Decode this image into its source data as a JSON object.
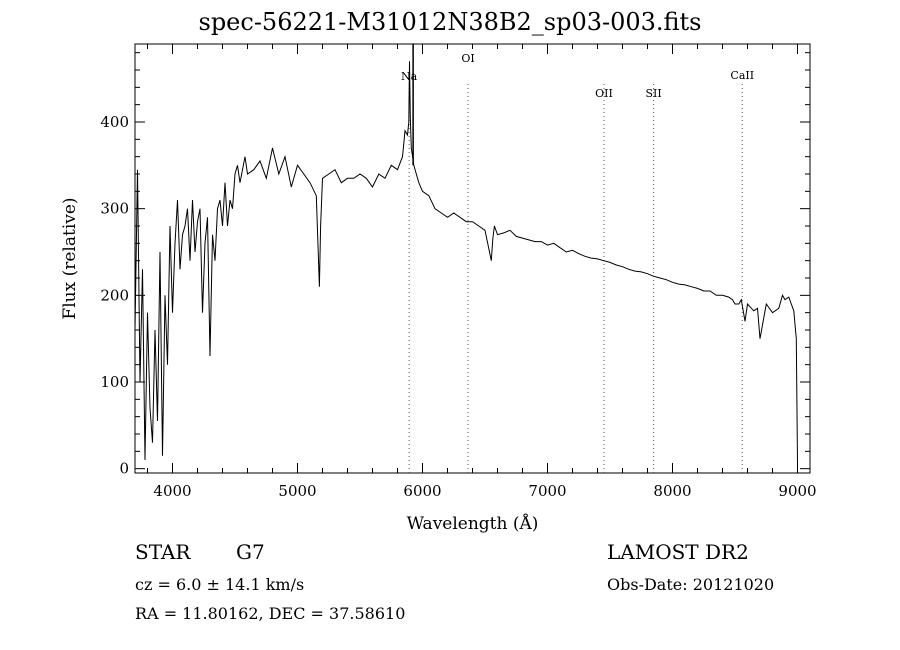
{
  "header": {
    "title": "spec-56221-M31012N38B2_sp03-003.fits"
  },
  "info": {
    "object_class": "STAR",
    "subclass": "G7",
    "survey": "LAMOST DR2",
    "cz": "cz = 6.0 ± 14.1 km/s",
    "obs_date": "Obs-Date: 20121020",
    "ra_dec": "RA =  11.80162, DEC =  37.58610"
  },
  "chart_data": {
    "type": "line",
    "xlabel": "Wavelength (Å)",
    "ylabel": "Flux (relative)",
    "xlim": [
      3700,
      9100
    ],
    "ylim": [
      -5,
      490
    ],
    "x_ticks": [
      4000,
      5000,
      6000,
      7000,
      8000,
      9000
    ],
    "y_ticks": [
      0,
      100,
      200,
      300,
      400
    ],
    "grid": false,
    "line_color": "#000000",
    "marker_color": "#555555",
    "line_markers": [
      {
        "label": "Na",
        "x": 5893
      },
      {
        "label": "OI",
        "x": 6364
      },
      {
        "label": "OII",
        "x": 7452
      },
      {
        "label": "SII",
        "x": 7849
      },
      {
        "label": "CaII",
        "x": 8558
      }
    ],
    "series": [
      {
        "x": [
          3700,
          3720,
          3740,
          3760,
          3780,
          3800,
          3820,
          3840,
          3860,
          3880,
          3900,
          3920,
          3940,
          3960,
          3980,
          4000,
          4020,
          4040,
          4060,
          4080,
          4100,
          4120,
          4140,
          4160,
          4180,
          4200,
          4220,
          4240,
          4260,
          4280,
          4300,
          4320,
          4340,
          4360,
          4380,
          4400,
          4420,
          4440,
          4460,
          4480,
          4500,
          4520,
          4540,
          4560,
          4580,
          4600,
          4650,
          4700,
          4750,
          4800,
          4850,
          4900,
          4950,
          5000,
          5050,
          5100,
          5150,
          5175,
          5185,
          5200,
          5250,
          5300,
          5350,
          5400,
          5450,
          5500,
          5550,
          5600,
          5650,
          5700,
          5750,
          5800,
          5840,
          5860,
          5880,
          5890,
          5896,
          5902,
          5910,
          5930,
          5950,
          5970,
          6000,
          6050,
          6100,
          6150,
          6200,
          6250,
          6300,
          6350,
          6400,
          6450,
          6500,
          6550,
          6562,
          6575,
          6600,
          6650,
          6700,
          6750,
          6800,
          6850,
          6900,
          6950,
          7000,
          7050,
          7100,
          7150,
          7200,
          7250,
          7300,
          7350,
          7400,
          7450,
          7500,
          7550,
          7600,
          7650,
          7700,
          7750,
          7800,
          7850,
          7900,
          7950,
          8000,
          8050,
          8100,
          8150,
          8200,
          8250,
          8300,
          8350,
          8400,
          8450,
          8480,
          8500,
          8530,
          8550,
          8580,
          8600,
          8650,
          8680,
          8700,
          8750,
          8800,
          8850,
          8880,
          8900,
          8930,
          8950,
          8970,
          8990,
          9000
        ],
        "values": [
          160,
          345,
          100,
          230,
          10,
          180,
          70,
          30,
          160,
          55,
          250,
          15,
          200,
          120,
          280,
          180,
          260,
          310,
          230,
          270,
          280,
          300,
          240,
          310,
          250,
          285,
          300,
          180,
          260,
          290,
          130,
          270,
          240,
          300,
          310,
          280,
          330,
          280,
          310,
          300,
          340,
          350,
          330,
          345,
          360,
          340,
          345,
          355,
          335,
          370,
          340,
          360,
          325,
          350,
          340,
          330,
          315,
          210,
          280,
          335,
          340,
          345,
          330,
          335,
          335,
          340,
          335,
          325,
          340,
          335,
          350,
          345,
          360,
          390,
          385,
          400,
          470,
          405,
          370,
          350,
          340,
          330,
          320,
          315,
          300,
          295,
          290,
          295,
          290,
          285,
          285,
          280,
          275,
          240,
          265,
          280,
          270,
          272,
          275,
          268,
          266,
          264,
          262,
          262,
          258,
          260,
          255,
          250,
          252,
          248,
          245,
          243,
          242,
          240,
          238,
          235,
          233,
          230,
          228,
          227,
          225,
          222,
          220,
          218,
          215,
          213,
          212,
          210,
          208,
          205,
          205,
          200,
          200,
          198,
          195,
          190,
          190,
          195,
          170,
          190,
          182,
          185,
          150,
          190,
          180,
          185,
          200,
          195,
          198,
          190,
          182,
          150,
          5
        ]
      }
    ]
  }
}
